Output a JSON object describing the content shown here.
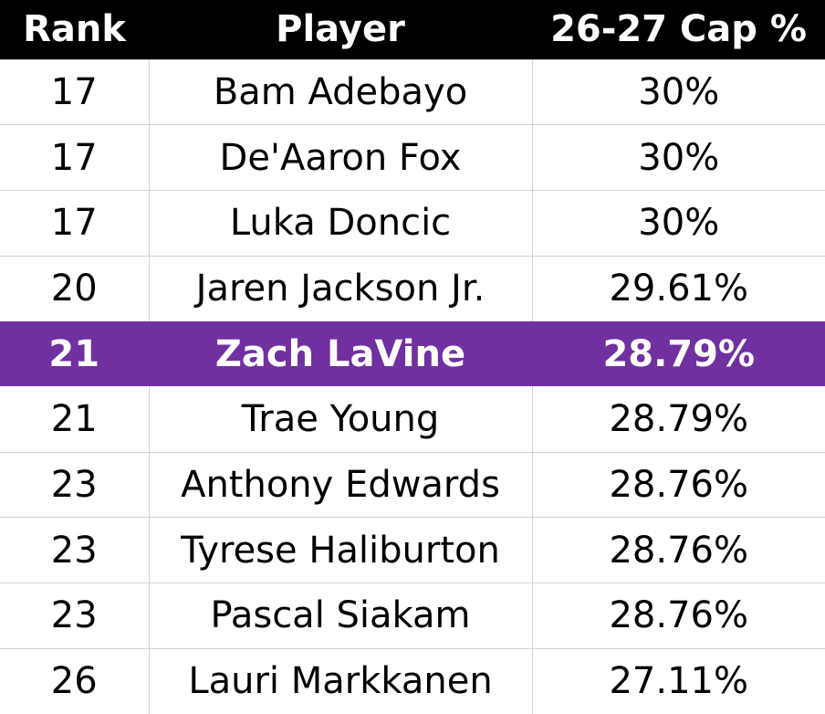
{
  "table": {
    "headers": [
      "Rank",
      "Player",
      "26-27 Cap %"
    ],
    "highlight_color": "#7030a0",
    "rows": [
      {
        "rank": "17",
        "player": "Bam Adebayo",
        "cap": "30%",
        "highlight": false
      },
      {
        "rank": "17",
        "player": "De'Aaron Fox",
        "cap": "30%",
        "highlight": false
      },
      {
        "rank": "17",
        "player": "Luka Doncic",
        "cap": "30%",
        "highlight": false
      },
      {
        "rank": "20",
        "player": "Jaren Jackson Jr.",
        "cap": "29.61%",
        "highlight": false
      },
      {
        "rank": "21",
        "player": "Zach LaVine",
        "cap": "28.79%",
        "highlight": true
      },
      {
        "rank": "21",
        "player": "Trae Young",
        "cap": "28.79%",
        "highlight": false
      },
      {
        "rank": "23",
        "player": "Anthony Edwards",
        "cap": "28.76%",
        "highlight": false
      },
      {
        "rank": "23",
        "player": "Tyrese Haliburton",
        "cap": "28.76%",
        "highlight": false
      },
      {
        "rank": "23",
        "player": "Pascal Siakam",
        "cap": "28.76%",
        "highlight": false
      },
      {
        "rank": "26",
        "player": "Lauri Markkanen",
        "cap": "27.11%",
        "highlight": false
      }
    ]
  }
}
